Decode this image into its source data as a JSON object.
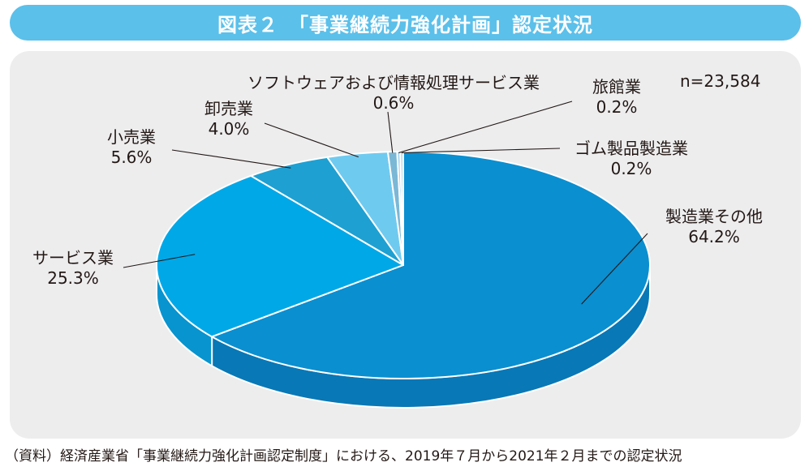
{
  "title": "図表２　「事業継続力強化計画」認定状況",
  "n_text": "n=23,584",
  "source": "（資料）経済産業省「事業継続力強化計画認定制度」における、2019年７月から2021年２月までの認定状況",
  "colors": {
    "title_bg": "#5bc0ea",
    "panel_bg": "#ededee",
    "text": "#231815"
  },
  "chart_data": {
    "type": "pie",
    "style": "3d",
    "n": 23584,
    "slices": [
      {
        "name": "製造業その他",
        "value": 64.2,
        "label": "64.2%",
        "color": "#0a8fd0",
        "side": "#0878b6"
      },
      {
        "name": "サービス業",
        "value": 25.3,
        "label": "25.3%",
        "color": "#00a8e8",
        "side": "#0794cf"
      },
      {
        "name": "小売業",
        "value": 5.6,
        "label": "5.6%",
        "color": "#1ea0d2",
        "side": "#168bb8"
      },
      {
        "name": "卸売業",
        "value": 4.0,
        "label": "4.0%",
        "color": "#6fcaf0",
        "side": "#5ab5dc"
      },
      {
        "name": "ソフトウェアおよび情報処理サービス業",
        "value": 0.6,
        "label": "0.6%",
        "color": "#7ab8d6",
        "side": "#66a3c0"
      },
      {
        "name": "旅館業",
        "value": 0.2,
        "label": "0.2%",
        "color": "#9ed0e8",
        "side": "#88bcd4"
      },
      {
        "name": "ゴム製品製造業",
        "value": 0.2,
        "label": "0.2%",
        "color": "#b6dcee",
        "side": "#a0c8da"
      }
    ]
  }
}
